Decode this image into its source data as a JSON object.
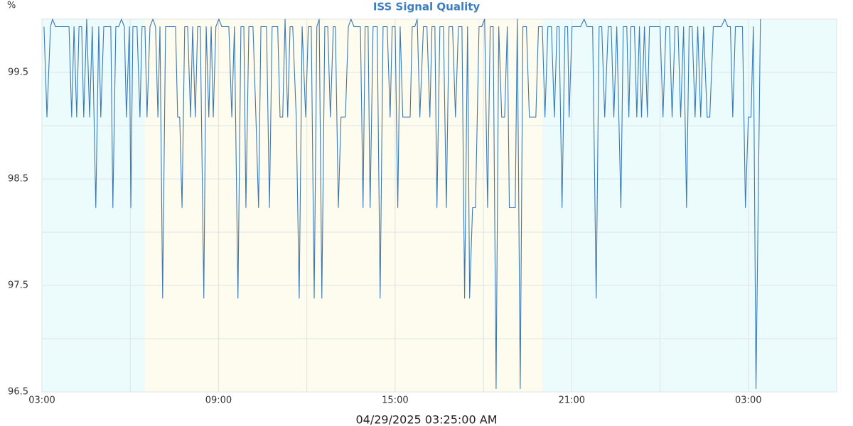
{
  "chart_data": {
    "type": "line",
    "title": "ISS Signal Quality",
    "y_label": "%",
    "x_label": "04/29/2025 03:25:00 AM",
    "color": "#3b79b6",
    "xlim": [
      0,
      27
    ],
    "xticks": [
      {
        "value": 0,
        "label": "03:00"
      },
      {
        "value": 6,
        "label": "09:00"
      },
      {
        "value": 12,
        "label": "15:00"
      },
      {
        "value": 18,
        "label": "21:00"
      },
      {
        "value": 24,
        "label": "03:00"
      }
    ],
    "x_minor_ticks": [
      3,
      9,
      15,
      21
    ],
    "ylim": [
      96.5,
      100
    ],
    "yticks": [
      96.5,
      97.5,
      98.5,
      99.5
    ],
    "y_minor_ticks": [
      97,
      98,
      99,
      100
    ],
    "grid": true,
    "bands": [
      {
        "start": 0,
        "end": 3.5,
        "color": "#ecfcfd"
      },
      {
        "start": 3.5,
        "end": 17,
        "color": "#fdfcee"
      },
      {
        "start": 17,
        "end": 27,
        "color": "#ecfcfd"
      }
    ],
    "x": [
      0.07,
      0.17,
      0.29,
      0.36,
      0.46,
      0.92,
      1.01,
      1.09,
      1.18,
      1.26,
      1.35,
      1.42,
      1.52,
      1.62,
      1.71,
      1.83,
      1.93,
      2.0,
      2.1,
      2.34,
      2.41,
      2.51,
      2.61,
      2.7,
      2.8,
      2.87,
      2.97,
      3.02,
      3.09,
      3.23,
      3.33,
      3.4,
      3.5,
      3.57,
      3.67,
      3.77,
      3.86,
      3.94,
      4.01,
      4.1,
      4.2,
      4.54,
      4.61,
      4.68,
      4.76,
      4.85,
      4.95,
      5.05,
      5.12,
      5.21,
      5.29,
      5.38,
      5.5,
      5.58,
      5.67,
      5.75,
      5.82,
      5.91,
      6.01,
      6.11,
      6.35,
      6.45,
      6.54,
      6.66,
      6.76,
      6.86,
      6.93,
      7.03,
      7.17,
      7.27,
      7.36,
      7.44,
      7.53,
      7.63,
      7.73,
      7.82,
      8.01,
      8.09,
      8.18,
      8.26,
      8.35,
      8.43,
      8.52,
      8.64,
      8.74,
      8.84,
      8.96,
      9.05,
      9.15,
      9.25,
      9.34,
      9.42,
      9.51,
      9.61,
      9.71,
      9.8,
      9.9,
      9.97,
      10.07,
      10.16,
      10.31,
      10.41,
      10.5,
      10.6,
      10.82,
      10.91,
      10.98,
      11.08,
      11.15,
      11.25,
      11.39,
      11.49,
      11.59,
      11.73,
      11.83,
      11.9,
      12.0,
      12.09,
      12.17,
      12.26,
      12.51,
      12.58,
      12.67,
      12.75,
      12.84,
      12.96,
      13.08,
      13.18,
      13.25,
      13.35,
      13.42,
      13.52,
      13.64,
      13.74,
      13.83,
      13.95,
      14.05,
      14.15,
      14.27,
      14.36,
      14.46,
      14.53,
      14.63,
      14.73,
      14.85,
      14.94,
      15.04,
      15.14,
      15.23,
      15.33,
      15.43,
      15.52,
      15.62,
      15.72,
      15.81,
      15.88,
      16.08,
      16.15,
      16.25,
      16.34,
      16.46,
      16.56,
      16.78,
      16.87,
      17.0,
      17.09,
      17.19,
      17.31,
      17.41,
      17.5,
      17.57,
      17.67,
      17.77,
      17.86,
      17.91,
      18.01,
      18.3,
      18.42,
      18.52,
      18.71,
      18.83,
      18.93,
      19.02,
      19.12,
      19.24,
      19.34,
      19.43,
      19.53,
      19.67,
      19.75,
      19.87,
      19.94,
      20.01,
      20.13,
      20.21,
      20.3,
      20.37,
      20.47,
      20.57,
      20.64,
      21.0,
      21.1,
      21.2,
      21.32,
      21.41,
      21.51,
      21.61,
      21.7,
      21.8,
      21.9,
      21.99,
      22.09,
      22.19,
      22.28,
      22.38,
      22.48,
      22.6,
      22.69,
      22.81,
      23.08,
      23.2,
      23.3,
      23.39,
      23.47,
      23.56,
      23.8,
      23.9,
      24.0,
      24.09,
      24.17,
      24.26,
      24.41
    ],
    "values": [
      99.93,
      99.08,
      99.93,
      100,
      99.93,
      99.93,
      99.08,
      99.93,
      99.08,
      99.93,
      99.93,
      99.08,
      100,
      99.08,
      99.93,
      98.23,
      99.93,
      99.08,
      99.93,
      99.93,
      98.23,
      99.93,
      99.93,
      100,
      99.93,
      99.08,
      99.93,
      98.23,
      99.93,
      99.93,
      99.08,
      99.93,
      99.93,
      99.08,
      99.93,
      100,
      99.93,
      99.08,
      99.93,
      97.38,
      99.93,
      99.93,
      99.08,
      99.08,
      98.23,
      99.93,
      99.93,
      99.08,
      99.93,
      99.08,
      99.93,
      99.93,
      97.38,
      99.93,
      99.08,
      99.93,
      99.08,
      99.93,
      100,
      99.93,
      99.93,
      99.08,
      99.93,
      97.38,
      99.93,
      99.93,
      98.23,
      99.93,
      99.93,
      99.08,
      98.23,
      99.93,
      99.93,
      99.93,
      98.23,
      99.93,
      99.93,
      99.08,
      99.08,
      100,
      99.08,
      99.93,
      99.93,
      99.08,
      97.38,
      99.93,
      99.08,
      99.93,
      99.93,
      97.38,
      99.93,
      100,
      97.38,
      99.93,
      99.93,
      99.08,
      99.93,
      99.93,
      98.23,
      99.08,
      99.08,
      99.93,
      100,
      99.93,
      99.93,
      98.23,
      99.93,
      99.93,
      98.23,
      99.93,
      99.93,
      97.38,
      99.93,
      99.93,
      99.08,
      99.93,
      99.93,
      98.23,
      99.93,
      99.08,
      99.08,
      99.93,
      99.93,
      100,
      99.08,
      99.93,
      99.93,
      99.08,
      99.93,
      99.93,
      98.23,
      99.93,
      99.93,
      98.23,
      99.93,
      99.93,
      99.08,
      99.93,
      99.93,
      97.38,
      99.93,
      97.38,
      98.23,
      98.23,
      99.93,
      99.93,
      100,
      98.23,
      99.93,
      99.93,
      96.53,
      99.93,
      99.08,
      99.08,
      99.93,
      98.23,
      98.23,
      100,
      96.53,
      99.93,
      99.93,
      99.08,
      99.08,
      99.93,
      99.93,
      99.08,
      99.93,
      99.93,
      99.08,
      99.93,
      99.93,
      98.23,
      99.93,
      99.93,
      99.08,
      99.93,
      99.93,
      100,
      99.93,
      99.93,
      97.38,
      99.93,
      99.93,
      99.08,
      99.93,
      99.93,
      99.08,
      99.93,
      98.23,
      99.93,
      99.93,
      99.08,
      99.93,
      99.93,
      99.08,
      99.93,
      99.08,
      99.93,
      99.08,
      99.93,
      99.93,
      99.08,
      99.93,
      99.93,
      99.08,
      99.93,
      99.93,
      99.08,
      99.93,
      98.23,
      99.93,
      99.93,
      99.08,
      99.93,
      99.08,
      99.93,
      99.08,
      99.08,
      99.93,
      99.93,
      100,
      99.93,
      99.93,
      99.08,
      99.93,
      99.93,
      98.23,
      99.08,
      99.08,
      99.93,
      96.53,
      100
    ]
  }
}
